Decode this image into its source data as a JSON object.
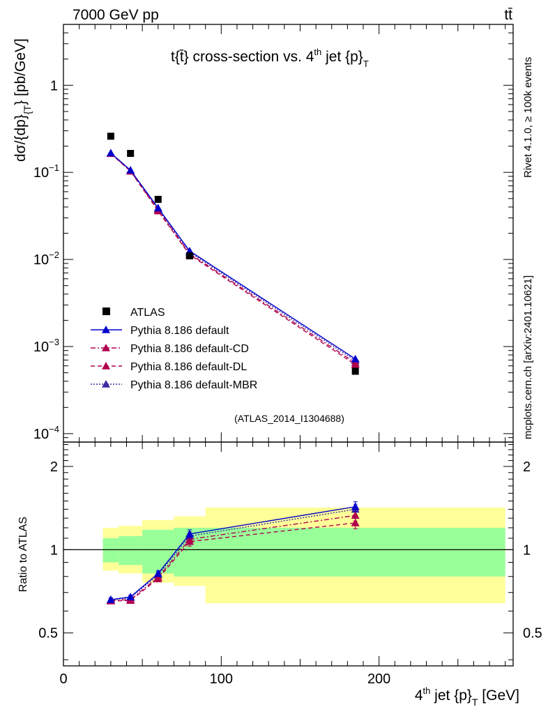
{
  "header": {
    "left": "7000 GeV pp",
    "right": "tt̄"
  },
  "side_label": {
    "rivet": "Rivet 4.1.0, ≥ 100k events",
    "site": "mcplots.cern.ch [arXiv:2401.10621]"
  },
  "colors": {
    "atlas": "#000000",
    "default": "#0000cc",
    "cd": "#b0004e",
    "dl": "#b0004e",
    "mbr": "#3a2aa0",
    "band_inner": "#99ff99",
    "band_outer": "#ffff99"
  },
  "chart_data": [
    {
      "type": "line",
      "title": "t{t̄} cross-section vs. 4th jet {p}_T",
      "title_parts": {
        "main": "t{t̄} cross-section vs. 4",
        "sup": "th",
        "tail": " jet {p}",
        "sub": "T"
      },
      "ylabel": "dσ/{dp}_{T} [pb/GeV]",
      "ylabel_parts": {
        "main": "dσ/{dp}",
        "sub": "{T",
        "tail": "} [pb/GeV]"
      },
      "yscale": "log",
      "ylim": [
        8e-05,
        5
      ],
      "xlim": [
        0,
        285
      ],
      "yticks": [
        {
          "value": 1,
          "label": "1"
        },
        {
          "value": 0.1,
          "label": "10",
          "exp": "−1"
        },
        {
          "value": 0.01,
          "label": "10",
          "exp": "−2"
        },
        {
          "value": 0.001,
          "label": "10",
          "exp": "−3"
        },
        {
          "value": 0.0001,
          "label": "10",
          "exp": "−4"
        }
      ],
      "watermark": "(ATLAS_2014_I1304688)",
      "legend": {
        "position": "middle-left",
        "entries": [
          {
            "key": "atlas",
            "label": "ATLAS"
          },
          {
            "key": "default",
            "label": "Pythia 8.186 default"
          },
          {
            "key": "cd",
            "label": "Pythia 8.186 default-CD"
          },
          {
            "key": "dl",
            "label": "Pythia 8.186 default-DL"
          },
          {
            "key": "mbr",
            "label": "Pythia 8.186 default-MBR"
          }
        ]
      },
      "x": [
        30,
        42.5,
        60,
        80,
        185
      ],
      "series": [
        {
          "key": "atlas",
          "name": "ATLAS",
          "values": [
            0.26,
            0.165,
            0.049,
            0.011,
            0.00052
          ]
        },
        {
          "key": "default",
          "name": "Pythia 8.186 default",
          "values": [
            0.167,
            0.106,
            0.039,
            0.0125,
            0.00072
          ]
        },
        {
          "key": "cd",
          "name": "Pythia 8.186 default-CD",
          "values": [
            0.165,
            0.104,
            0.037,
            0.0116,
            0.00065
          ]
        },
        {
          "key": "dl",
          "name": "Pythia 8.186 default-DL",
          "values": [
            0.164,
            0.103,
            0.036,
            0.0113,
            0.00062
          ]
        },
        {
          "key": "mbr",
          "name": "Pythia 8.186 default-MBR",
          "values": [
            0.166,
            0.105,
            0.038,
            0.0121,
            0.00069
          ]
        }
      ]
    },
    {
      "type": "line",
      "title": "Ratio to ATLAS",
      "ylabel": "Ratio to ATLAS",
      "xlabel": "4th jet {p}_T [GeV]",
      "xlabel_parts": {
        "main": "4",
        "sup": "th",
        "tail": " jet {p}",
        "sub": "T",
        "end": " [GeV]"
      },
      "yscale": "log",
      "ylim": [
        0.38,
        2.45
      ],
      "xlim": [
        0,
        285
      ],
      "xticks": [
        0,
        100,
        200
      ],
      "yticks": [
        {
          "value": 0.5,
          "label": "0.5"
        },
        {
          "value": 1,
          "label": "1"
        },
        {
          "value": 2,
          "label": "2"
        }
      ],
      "bands": [
        {
          "x": [
            25,
            35
          ],
          "inner": [
            0.9,
            1.1
          ],
          "outer": [
            0.84,
            1.2
          ]
        },
        {
          "x": [
            35,
            50
          ],
          "inner": [
            0.88,
            1.12
          ],
          "outer": [
            0.82,
            1.22
          ]
        },
        {
          "x": [
            50,
            70
          ],
          "inner": [
            0.82,
            1.18
          ],
          "outer": [
            0.76,
            1.28
          ]
        },
        {
          "x": [
            70,
            90
          ],
          "inner": [
            0.8,
            1.2
          ],
          "outer": [
            0.74,
            1.32
          ]
        },
        {
          "x": [
            90,
            280
          ],
          "inner": [
            0.8,
            1.2
          ],
          "outer": [
            0.64,
            1.42
          ]
        }
      ],
      "x": [
        30,
        42.5,
        60,
        80,
        185
      ],
      "series": [
        {
          "key": "default",
          "name": "Pythia 8.186 default",
          "values": [
            0.66,
            0.675,
            0.82,
            1.14,
            1.43
          ],
          "err": [
            0.01,
            0.01,
            0.02,
            0.04,
            0.06
          ]
        },
        {
          "key": "cd",
          "name": "Pythia 8.186 default-CD",
          "values": [
            0.655,
            0.66,
            0.795,
            1.09,
            1.33
          ],
          "err": [
            0.01,
            0.01,
            0.02,
            0.04,
            0.06
          ]
        },
        {
          "key": "dl",
          "name": "Pythia 8.186 default-DL",
          "values": [
            0.652,
            0.655,
            0.785,
            1.07,
            1.25
          ],
          "err": [
            0.01,
            0.01,
            0.02,
            0.04,
            0.06
          ]
        },
        {
          "key": "mbr",
          "name": "Pythia 8.186 default-MBR",
          "values": [
            0.658,
            0.67,
            0.81,
            1.12,
            1.4
          ],
          "err": [
            0.01,
            0.01,
            0.02,
            0.04,
            0.06
          ]
        }
      ]
    }
  ]
}
